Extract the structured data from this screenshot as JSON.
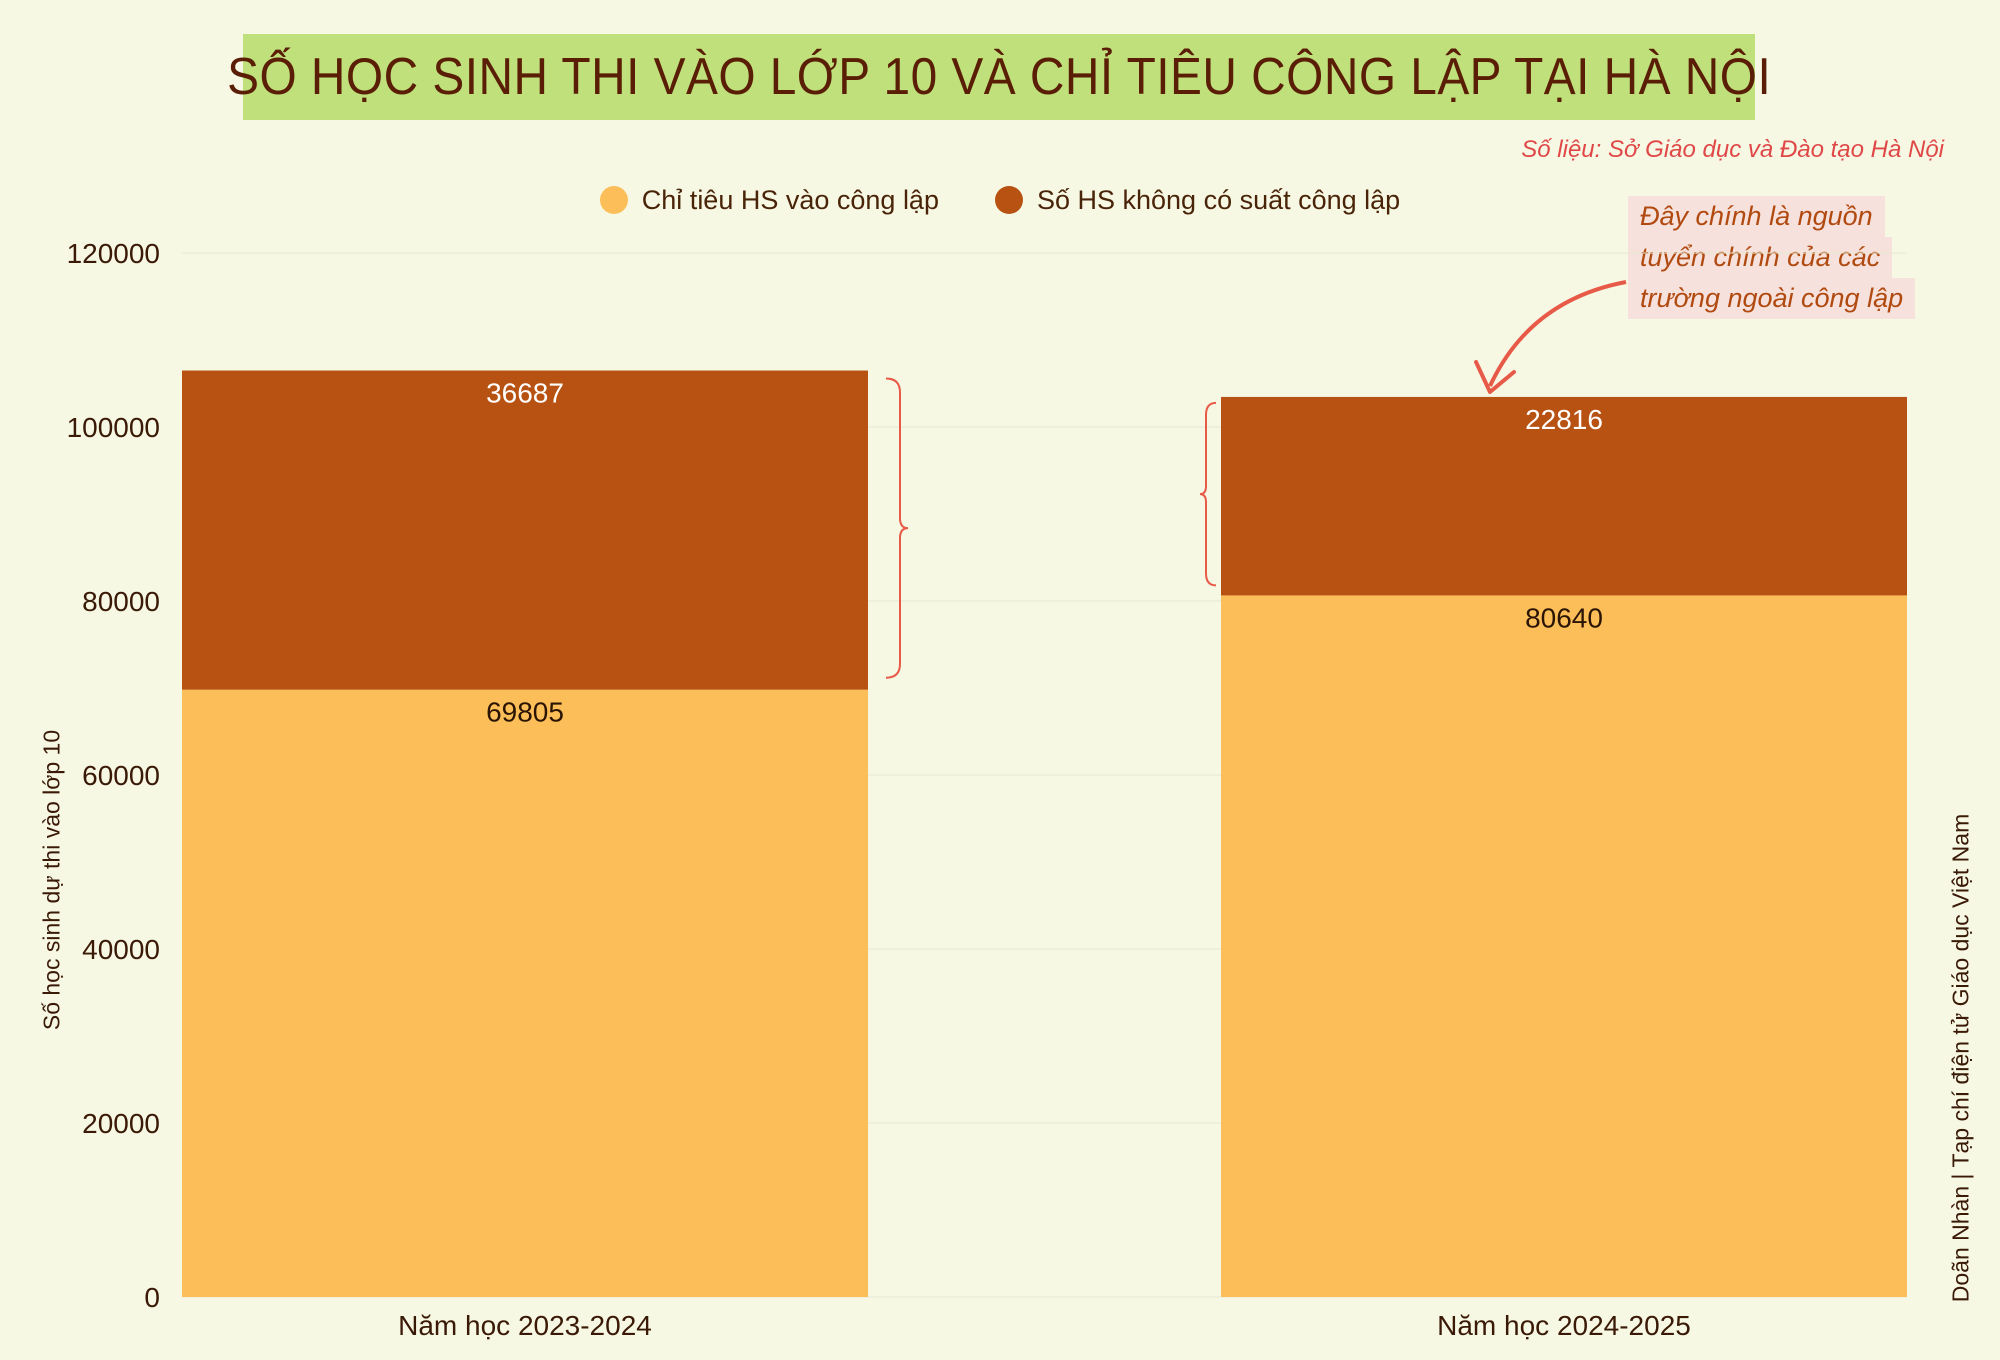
{
  "title": "SỐ HỌC SINH THI VÀO LỚP 10 VÀ CHỈ TIÊU CÔNG LẬP TẠI HÀ NỘI",
  "source": "Số liệu: Sở Giáo dục và Đào tạo Hà Nội",
  "annotation": {
    "lines": [
      "Đây chính là nguồn",
      "tuyển chính của các",
      "trường ngoài công lập"
    ]
  },
  "credit": "Doãn Nhàn | Tạp chí điện tử Giáo dục Việt Nam",
  "colors": {
    "public_quota": "#fcbe58",
    "no_public_seat": "#b75212",
    "accent_red": "#e85a48",
    "title_bg": "#bfe07b"
  },
  "chart_data": {
    "type": "bar",
    "stacked": true,
    "title": "SỐ HỌC SINH THI VÀO LỚP 10 VÀ CHỈ TIÊU CÔNG LẬP TẠI HÀ NỘI",
    "xlabel": "",
    "ylabel": "Số học sinh dự thi vào lớp 10",
    "ylim": [
      0,
      120000
    ],
    "yticks": [
      0,
      20000,
      40000,
      60000,
      80000,
      100000,
      120000
    ],
    "categories": [
      "Năm học 2023-2024",
      "Năm học 2024-2025"
    ],
    "series": [
      {
        "name": "Chỉ tiêu HS vào công lập",
        "values": [
          69805,
          80640
        ]
      },
      {
        "name": "Số HS không có suất công lập",
        "values": [
          36687,
          22816
        ]
      }
    ],
    "legend": "top-center",
    "grid": true
  }
}
